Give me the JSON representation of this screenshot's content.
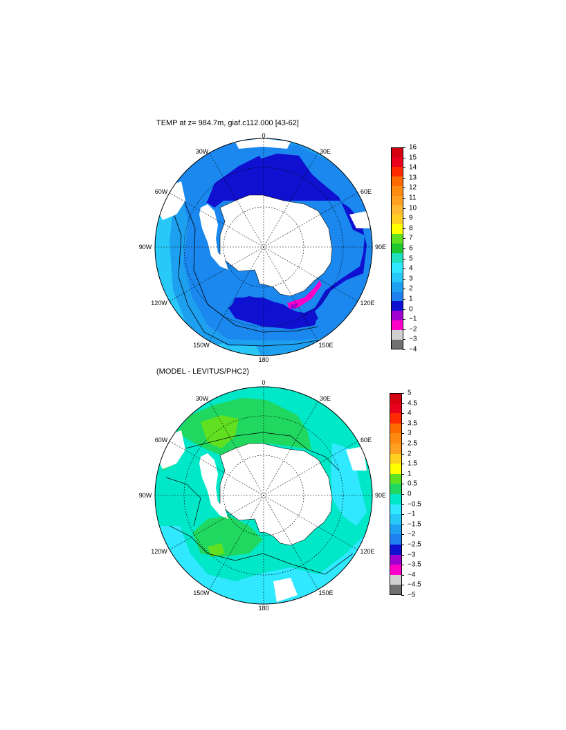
{
  "maps": [
    {
      "title": "TEMP at z= 984.7m, giaf.c112.000 [43-62]",
      "lon_labels": {
        "top": "0",
        "n30e": "30E",
        "n60e": "60E",
        "e90": "90E",
        "n120e": "120E",
        "n150e": "150E",
        "bottom": "180",
        "n150w": "150W",
        "n120w": "120W",
        "w90": "90W",
        "n60w": "60W",
        "n30w": "30W"
      },
      "colorbar": {
        "labels": [
          "16",
          "15",
          "14",
          "13",
          "12",
          "11",
          "10",
          "9",
          "8",
          "7",
          "6",
          "5",
          "4",
          "3",
          "2",
          "1",
          "0",
          "−1",
          "−2",
          "−3",
          "−4"
        ],
        "colors": [
          "#d50010",
          "#e8001c",
          "#ff2a00",
          "#ff6a00",
          "#ff8a10",
          "#ffa020",
          "#ffb830",
          "#ffd020",
          "#ffff00",
          "#60e020",
          "#20c830",
          "#20e0c0",
          "#30e8ff",
          "#28c8f8",
          "#20a0f0",
          "#2080f0",
          "#1010d0",
          "#a000d0",
          "#ff00c8",
          "#d0d0d0",
          "#707070"
        ]
      }
    },
    {
      "title": "(MODEL - LEVITUS/PHC2)",
      "lon_labels": {
        "top": "0",
        "n30e": "30E",
        "n60e": "60E",
        "e90": "90E",
        "n120e": "120E",
        "n150e": "150E",
        "bottom": "180",
        "n150w": "150W",
        "n120w": "120W",
        "w90": "90W",
        "n60w": "60W",
        "n30w": "30W"
      },
      "colorbar": {
        "labels": [
          "5",
          "4.5",
          "4",
          "3.5",
          "3",
          "2.5",
          "2",
          "1.5",
          "1",
          "0.5",
          "0",
          "−0.5",
          "−1",
          "−1.5",
          "−2",
          "−2.5",
          "−3",
          "−3.5",
          "−4",
          "−4.5",
          "−5"
        ],
        "colors": [
          "#d50010",
          "#e8001c",
          "#ff2a00",
          "#ff6a00",
          "#ff8a10",
          "#ffa020",
          "#ffd020",
          "#ffff00",
          "#60e020",
          "#20d860",
          "#00e8c8",
          "#30e8ff",
          "#28c8f8",
          "#20a0f0",
          "#2080f0",
          "#1010d0",
          "#a000d0",
          "#ff00c8",
          "#d0d0d0",
          "#707070"
        ]
      }
    }
  ]
}
